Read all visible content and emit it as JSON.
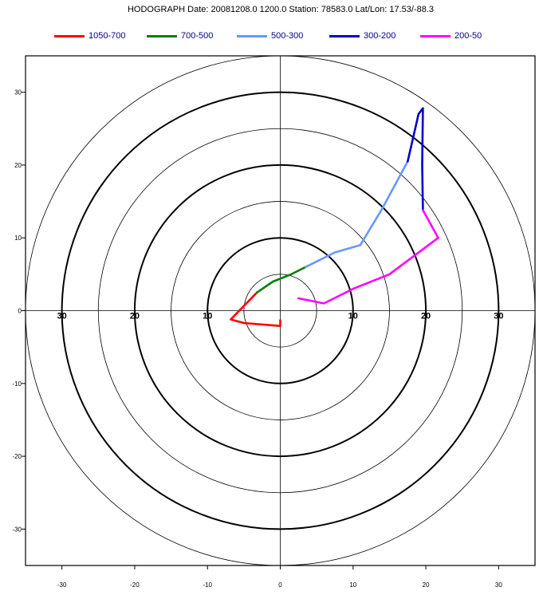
{
  "title": "HODOGRAPH Date: 20081208.0 1200.0 Station: 78583.0 Lat/Lon: 17.53/-88.3",
  "chart_data": {
    "type": "line",
    "title": "HODOGRAPH Date: 20081208.0 1200.0 Station: 78583.0 Lat/Lon: 17.53/-88.3",
    "xlim": [
      -35,
      35
    ],
    "ylim": [
      -35,
      35
    ],
    "x_ticks": [
      -30,
      -20,
      -10,
      0,
      10,
      20,
      30
    ],
    "y_ticks": [
      30,
      20,
      10,
      0,
      -10,
      -20,
      -30
    ],
    "rings": [
      {
        "radius": 5,
        "bold": false
      },
      {
        "radius": 10,
        "bold": true
      },
      {
        "radius": 15,
        "bold": false
      },
      {
        "radius": 20,
        "bold": true
      },
      {
        "radius": 25,
        "bold": false
      },
      {
        "radius": 30,
        "bold": true
      },
      {
        "radius": 35,
        "bold": false
      }
    ],
    "ring_labels": [
      {
        "text": "30",
        "x": -30
      },
      {
        "text": "20",
        "x": -20
      },
      {
        "text": "10",
        "x": -10
      },
      {
        "text": "10",
        "x": 10
      },
      {
        "text": "20",
        "x": 20
      },
      {
        "text": "30",
        "x": 30
      }
    ],
    "grid": false,
    "legend_position": "top",
    "series": [
      {
        "name": "1050-700",
        "color": "#ff0000",
        "points": [
          [
            0.0,
            -1.3
          ],
          [
            0.0,
            -2.1
          ],
          [
            -5.0,
            -1.7
          ],
          [
            -6.8,
            -1.2
          ],
          [
            -3.2,
            2.5
          ]
        ]
      },
      {
        "name": "700-500",
        "color": "#008000",
        "points": [
          [
            -3.2,
            2.5
          ],
          [
            -1.0,
            4.0
          ],
          [
            1.5,
            5.0
          ],
          [
            3.5,
            6.0
          ]
        ]
      },
      {
        "name": "500-300",
        "color": "#6699ff",
        "points": [
          [
            3.5,
            6.0
          ],
          [
            7.5,
            8.0
          ],
          [
            11.0,
            9.0
          ],
          [
            14.0,
            14.0
          ],
          [
            17.5,
            20.5
          ]
        ]
      },
      {
        "name": "300-200",
        "color": "#0000cc",
        "points": [
          [
            17.5,
            20.5
          ],
          [
            19.0,
            27.0
          ],
          [
            19.6,
            27.8
          ],
          [
            19.5,
            20.0
          ],
          [
            19.6,
            13.8
          ]
        ]
      },
      {
        "name": "200-50",
        "color": "#ff00ff",
        "points": [
          [
            19.6,
            13.8
          ],
          [
            21.7,
            10.0
          ],
          [
            15.0,
            5.0
          ],
          [
            10.0,
            3.0
          ],
          [
            6.0,
            1.0
          ],
          [
            2.5,
            1.7
          ]
        ]
      }
    ]
  }
}
